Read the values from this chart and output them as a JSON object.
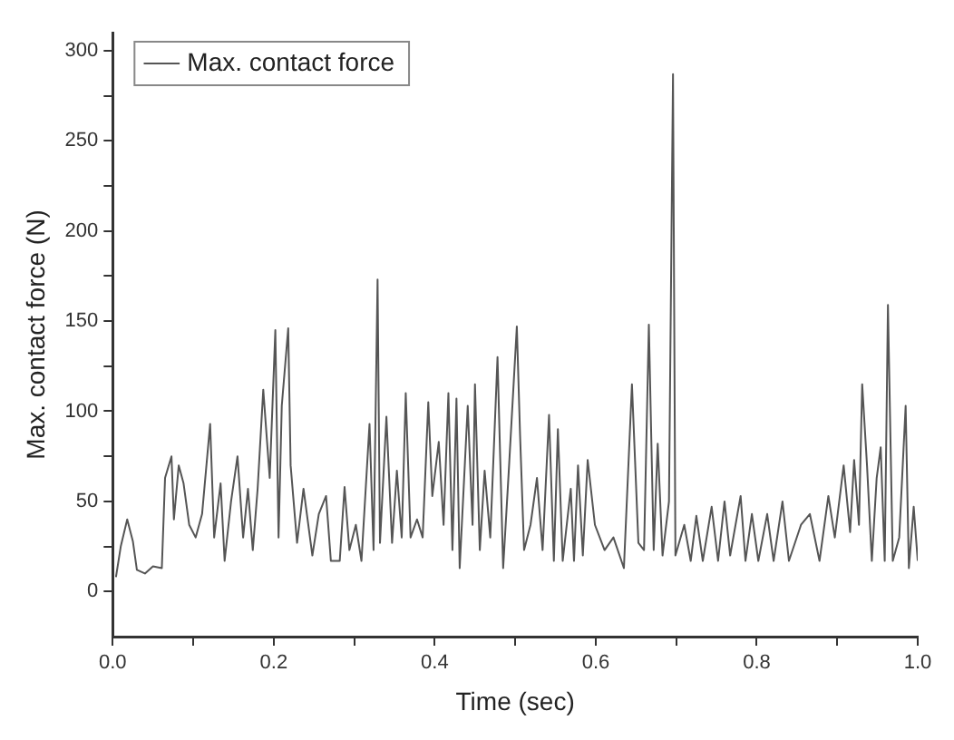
{
  "chart_data": {
    "type": "line",
    "xlabel": "Time (sec)",
    "ylabel": "Max. contact force (N)",
    "xlim": [
      0,
      1
    ],
    "ylim": [
      -25,
      310
    ],
    "xticks": [
      {
        "value": 0,
        "label": "0.0"
      },
      {
        "value": 0.1,
        "label": null
      },
      {
        "value": 0.2,
        "label": "0.2"
      },
      {
        "value": 0.3,
        "label": null
      },
      {
        "value": 0.4,
        "label": "0.4"
      },
      {
        "value": 0.5,
        "label": null
      },
      {
        "value": 0.6,
        "label": "0.6"
      },
      {
        "value": 0.7,
        "label": null
      },
      {
        "value": 0.8,
        "label": "0.8"
      },
      {
        "value": 0.9,
        "label": null
      },
      {
        "value": 1,
        "label": "1.0"
      }
    ],
    "yticks": [
      0,
      {
        "value": 25,
        "label": null
      },
      50,
      {
        "value": 75,
        "label": null
      },
      100,
      {
        "value": 125,
        "label": null
      },
      150,
      {
        "value": 175,
        "label": null
      },
      200,
      {
        "value": 225,
        "label": null
      },
      250,
      {
        "value": 275,
        "label": null
      },
      300
    ],
    "grid": false,
    "legend": "top left",
    "marker": "none",
    "line_style": "solid",
    "series": [
      {
        "name": "Max. contact force",
        "color": "#555555",
        "x": [
          0.004,
          0.01,
          0.018,
          0.025,
          0.03,
          0.04,
          0.05,
          0.061,
          0.065,
          0.073,
          0.076,
          0.082,
          0.088,
          0.095,
          0.103,
          0.111,
          0.121,
          0.126,
          0.134,
          0.139,
          0.147,
          0.155,
          0.162,
          0.168,
          0.174,
          0.18,
          0.187,
          0.195,
          0.202,
          0.206,
          0.21,
          0.218,
          0.221,
          0.229,
          0.237,
          0.248,
          0.256,
          0.265,
          0.271,
          0.282,
          0.288,
          0.294,
          0.302,
          0.309,
          0.319,
          0.324,
          0.329,
          0.332,
          0.34,
          0.347,
          0.353,
          0.359,
          0.364,
          0.37,
          0.378,
          0.385,
          0.392,
          0.397,
          0.405,
          0.411,
          0.417,
          0.422,
          0.427,
          0.431,
          0.441,
          0.447,
          0.45,
          0.456,
          0.462,
          0.469,
          0.478,
          0.485,
          0.492,
          0.502,
          0.506,
          0.511,
          0.519,
          0.527,
          0.534,
          0.542,
          0.548,
          0.553,
          0.559,
          0.569,
          0.573,
          0.578,
          0.584,
          0.59,
          0.599,
          0.611,
          0.622,
          0.635,
          0.645,
          0.653,
          0.66,
          0.666,
          0.672,
          0.677,
          0.683,
          0.691,
          0.696,
          0.699,
          0.71,
          0.718,
          0.725,
          0.733,
          0.744,
          0.752,
          0.76,
          0.767,
          0.78,
          0.786,
          0.794,
          0.802,
          0.813,
          0.821,
          0.832,
          0.84,
          0.855,
          0.866,
          0.878,
          0.889,
          0.897,
          0.908,
          0.916,
          0.921,
          0.927,
          0.931,
          0.937,
          0.943,
          0.949,
          0.954,
          0.959,
          0.963,
          0.969,
          0.977,
          0.985,
          0.989,
          0.995,
          1.0
        ],
        "values": [
          8,
          25,
          40,
          28,
          12,
          10,
          14,
          13,
          63,
          75,
          40,
          70,
          60,
          37,
          30,
          43,
          93,
          30,
          60,
          17,
          50,
          75,
          30,
          57,
          23,
          57,
          112,
          63,
          145,
          30,
          103,
          146,
          70,
          27,
          57,
          20,
          43,
          53,
          17,
          17,
          58,
          23,
          37,
          17,
          93,
          23,
          173,
          27,
          97,
          27,
          67,
          30,
          110,
          30,
          40,
          30,
          105,
          53,
          83,
          37,
          110,
          23,
          107,
          13,
          103,
          37,
          115,
          23,
          67,
          30,
          130,
          13,
          67,
          147,
          87,
          23,
          37,
          63,
          23,
          98,
          17,
          90,
          17,
          57,
          17,
          70,
          20,
          73,
          37,
          23,
          30,
          13,
          115,
          27,
          23,
          148,
          23,
          82,
          20,
          50,
          287,
          20,
          37,
          17,
          42,
          17,
          47,
          17,
          50,
          20,
          53,
          17,
          43,
          17,
          43,
          17,
          50,
          17,
          37,
          43,
          17,
          53,
          30,
          70,
          33,
          73,
          37,
          115,
          70,
          17,
          63,
          80,
          17,
          159,
          17,
          30,
          103,
          13,
          47,
          17
        ]
      }
    ]
  }
}
